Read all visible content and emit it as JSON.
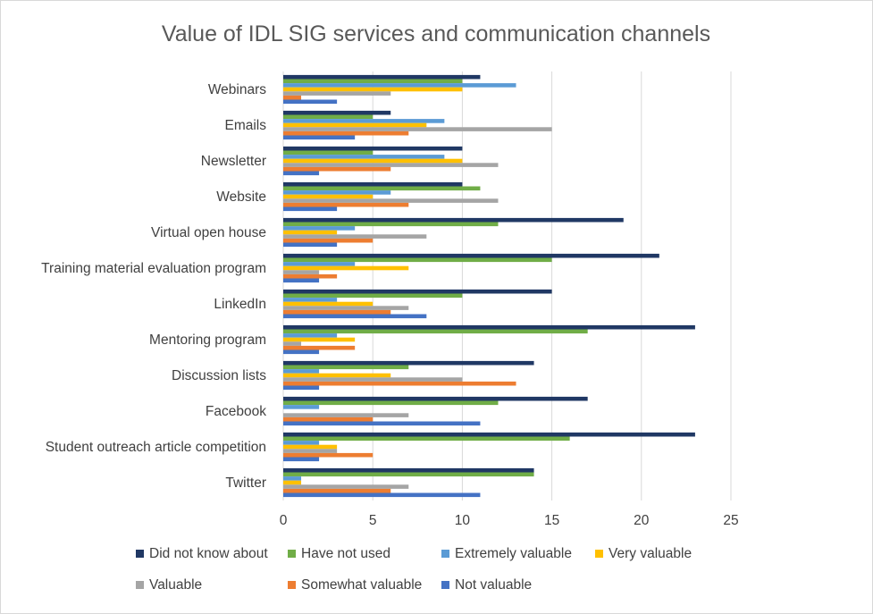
{
  "chart_data": {
    "type": "bar",
    "orientation": "horizontal",
    "title": "Value of IDL SIG services and communication channels",
    "categories": [
      "Webinars",
      "Emails",
      "Newsletter",
      "Website",
      "Virtual open house",
      "Training material evaluation program",
      "LinkedIn",
      "Mentoring program",
      "Discussion lists",
      "Facebook",
      "Student outreach article competition",
      "Twitter"
    ],
    "series": [
      {
        "name": "Did not know about",
        "color": "#203864",
        "values": [
          11,
          6,
          10,
          10,
          19,
          21,
          15,
          23,
          14,
          17,
          23,
          14
        ]
      },
      {
        "name": "Have not used",
        "color": "#70ad47",
        "values": [
          10,
          5,
          5,
          11,
          12,
          15,
          10,
          17,
          7,
          12,
          16,
          14
        ]
      },
      {
        "name": "Extremely valuable",
        "color": "#5b9bd5",
        "values": [
          13,
          9,
          9,
          6,
          4,
          4,
          3,
          3,
          2,
          2,
          2,
          1
        ]
      },
      {
        "name": "Very valuable",
        "color": "#ffc000",
        "values": [
          10,
          8,
          10,
          5,
          3,
          7,
          5,
          4,
          6,
          0,
          3,
          1
        ]
      },
      {
        "name": "Valuable",
        "color": "#a5a5a5",
        "values": [
          6,
          15,
          12,
          12,
          8,
          2,
          7,
          1,
          10,
          7,
          3,
          7
        ]
      },
      {
        "name": "Somewhat valuable",
        "color": "#ed7d31",
        "values": [
          1,
          7,
          6,
          7,
          5,
          3,
          6,
          4,
          13,
          5,
          5,
          6
        ]
      },
      {
        "name": "Not valuable",
        "color": "#4472c4",
        "values": [
          3,
          4,
          2,
          3,
          3,
          2,
          8,
          2,
          2,
          11,
          2,
          11
        ]
      }
    ],
    "xlim": [
      0,
      25
    ],
    "xticks": [
      "0",
      "5",
      "10",
      "15",
      "20",
      "25"
    ],
    "grid": "vertical",
    "legend": "bottom"
  }
}
